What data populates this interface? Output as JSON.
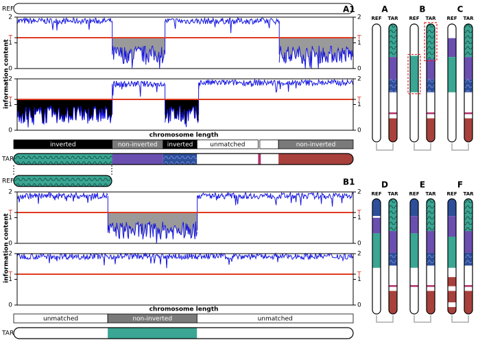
{
  "labels": {
    "ref": "REF",
    "tar": "TAR",
    "group_a": "A1",
    "group_b": "B1",
    "y_axis": "information content",
    "x_axis": "chromosome length"
  },
  "ylim": [
    0,
    2
  ],
  "yticks": [
    0,
    1,
    {
      "value": 1.2,
      "label": "T"
    },
    2
  ],
  "panels": [
    {
      "segments": [
        {
          "from": 0,
          "to": 0.283,
          "level": 1.85
        },
        {
          "from": 0.283,
          "to": 0.44,
          "level": 0.55,
          "fill": "#9a9a9a"
        },
        {
          "from": 0.44,
          "to": 0.78,
          "level": 1.85
        },
        {
          "from": 0.78,
          "to": 1,
          "level": 0.55,
          "fill": "#9a9a9a"
        }
      ]
    },
    {
      "segments": [
        {
          "from": 0,
          "to": 0.283,
          "level": 0.6,
          "fill": "#000000"
        },
        {
          "from": 0.283,
          "to": 0.44,
          "level": 1.8
        },
        {
          "from": 0.44,
          "to": 0.54,
          "level": 0.6,
          "fill": "#000000"
        },
        {
          "from": 0.54,
          "to": 1,
          "level": 1.85
        }
      ]
    },
    {
      "segments": [
        {
          "from": 0,
          "to": 0.27,
          "level": 1.85
        },
        {
          "from": 0.27,
          "to": 0.536,
          "level": 0.5,
          "fill": "#9a9a9a"
        },
        {
          "from": 0.536,
          "to": 1,
          "level": 1.85
        }
      ]
    },
    {
      "segments": [
        {
          "from": 0,
          "to": 1,
          "level": 1.9
        }
      ]
    }
  ],
  "annotation_bars": [
    [
      {
        "from": 0,
        "to": 0.29,
        "label": "inverted",
        "fill": "#000000"
      },
      {
        "from": 0.29,
        "to": 0.44,
        "label": "non-inverted",
        "fill": "#7a7a7a"
      },
      {
        "from": 0.44,
        "to": 0.54,
        "label": "inverted",
        "fill": "#000000"
      },
      {
        "from": 0.54,
        "to": 0.72,
        "label": "unmatched",
        "fill": "#ffffff"
      },
      {
        "from": 0.725,
        "to": 0.78,
        "fill": "#ffffff"
      },
      {
        "from": 0.78,
        "to": 1,
        "label": "non-inverted",
        "fill": "#7a7a7a"
      }
    ],
    [
      {
        "from": 0,
        "to": 0.277,
        "label": "unmatched",
        "fill": "#ffffff"
      },
      {
        "from": 0.277,
        "to": 0.54,
        "label": "non-inverted",
        "fill": "#7a7a7a"
      },
      {
        "from": 0.54,
        "to": 1,
        "label": "unmatched",
        "fill": "#ffffff"
      }
    ]
  ],
  "strips": [
    [
      {
        "from": 0,
        "to": 0.29,
        "color": "teal"
      },
      {
        "from": 0.29,
        "to": 0.44,
        "color": "#6a4fb0"
      },
      {
        "from": 0.44,
        "to": 0.54,
        "color": "blue"
      },
      {
        "from": 0.54,
        "to": 0.72,
        "color": "#ffffff"
      },
      {
        "from": 0.72,
        "to": 0.728,
        "color": "#b0306a"
      },
      {
        "from": 0.728,
        "to": 0.78,
        "color": "#ffffff"
      },
      {
        "from": 0.78,
        "to": 1,
        "color": "#a8403c"
      }
    ],
    [
      {
        "from": 0,
        "to": 1,
        "color": "teal"
      }
    ],
    [
      {
        "from": 0,
        "to": 0.277,
        "color": "#ffffff"
      },
      {
        "from": 0.277,
        "to": 0.54,
        "color": "#3aa693"
      },
      {
        "from": 0.54,
        "to": 1,
        "color": "#ffffff"
      }
    ]
  ],
  "chromosomes": [
    {
      "label": "A",
      "ref": [
        {
          "from": 0,
          "to": 1,
          "color": "#ffffff"
        }
      ],
      "tar": [
        {
          "from": 0,
          "to": 0.28,
          "color": "teal"
        },
        {
          "from": 0.28,
          "to": 0.47,
          "color": "#6a4fb0"
        },
        {
          "from": 0.47,
          "to": 0.58,
          "color": "blue"
        },
        {
          "from": 0.58,
          "to": 0.75,
          "color": "#ffffff"
        },
        {
          "from": 0.75,
          "to": 0.765,
          "color": "#b0306a"
        },
        {
          "from": 0.765,
          "to": 0.8,
          "color": "#ffffff"
        },
        {
          "from": 0.8,
          "to": 1,
          "color": "#a8403c"
        }
      ]
    },
    {
      "label": "B",
      "ref": [
        {
          "from": 0,
          "to": 0.27,
          "color": "#ffffff"
        },
        {
          "from": 0.27,
          "to": 0.58,
          "color": "#3aa693",
          "highlight": true
        },
        {
          "from": 0.58,
          "to": 1,
          "color": "#ffffff"
        }
      ],
      "tar": [
        {
          "from": 0,
          "to": 0.3,
          "color": "teal",
          "highlight": true
        },
        {
          "from": 0.3,
          "to": 0.47,
          "color": "#6a4fb0"
        },
        {
          "from": 0.47,
          "to": 0.58,
          "color": "blue"
        },
        {
          "from": 0.58,
          "to": 0.75,
          "color": "#ffffff"
        },
        {
          "from": 0.75,
          "to": 0.765,
          "color": "#b0306a"
        },
        {
          "from": 0.765,
          "to": 0.8,
          "color": "#ffffff"
        },
        {
          "from": 0.8,
          "to": 1,
          "color": "#a8403c"
        }
      ]
    },
    {
      "label": "C",
      "ref": [
        {
          "from": 0,
          "to": 0.12,
          "color": "#ffffff"
        },
        {
          "from": 0.12,
          "to": 0.28,
          "color": "#6a4fb0"
        },
        {
          "from": 0.28,
          "to": 0.58,
          "color": "#3aa693"
        },
        {
          "from": 0.58,
          "to": 1,
          "color": "#ffffff"
        }
      ],
      "tar": [
        {
          "from": 0,
          "to": 0.28,
          "color": "teal"
        },
        {
          "from": 0.28,
          "to": 0.47,
          "color": "#6a4fb0"
        },
        {
          "from": 0.47,
          "to": 0.58,
          "color": "blue"
        },
        {
          "from": 0.58,
          "to": 0.75,
          "color": "#ffffff"
        },
        {
          "from": 0.75,
          "to": 0.765,
          "color": "#b0306a"
        },
        {
          "from": 0.765,
          "to": 0.8,
          "color": "#ffffff"
        },
        {
          "from": 0.8,
          "to": 1,
          "color": "#a8403c"
        }
      ]
    },
    {
      "label": "D",
      "ref": [
        {
          "from": 0,
          "to": 0.15,
          "color": "#2d4f9a"
        },
        {
          "from": 0.15,
          "to": 0.165,
          "color": "#ffffff"
        },
        {
          "from": 0.165,
          "to": 0.3,
          "color": "#6a4fb0"
        },
        {
          "from": 0.3,
          "to": 0.6,
          "color": "#3aa693"
        },
        {
          "from": 0.6,
          "to": 1,
          "color": "#ffffff"
        }
      ],
      "tar": [
        {
          "from": 0,
          "to": 0.28,
          "color": "teal"
        },
        {
          "from": 0.28,
          "to": 0.47,
          "color": "#6a4fb0"
        },
        {
          "from": 0.47,
          "to": 0.58,
          "color": "blue"
        },
        {
          "from": 0.58,
          "to": 0.75,
          "color": "#ffffff"
        },
        {
          "from": 0.75,
          "to": 0.765,
          "color": "#b0306a"
        },
        {
          "from": 0.765,
          "to": 0.8,
          "color": "#ffffff"
        },
        {
          "from": 0.8,
          "to": 1,
          "color": "#a8403c"
        }
      ]
    },
    {
      "label": "E",
      "ref": [
        {
          "from": 0,
          "to": 0.15,
          "color": "#2d4f9a"
        },
        {
          "from": 0.15,
          "to": 0.3,
          "color": "#6a4fb0"
        },
        {
          "from": 0.3,
          "to": 0.6,
          "color": "#3aa693"
        },
        {
          "from": 0.6,
          "to": 0.75,
          "color": "#ffffff"
        },
        {
          "from": 0.75,
          "to": 0.765,
          "color": "#b0306a"
        },
        {
          "from": 0.765,
          "to": 1,
          "color": "#ffffff"
        }
      ],
      "tar": [
        {
          "from": 0,
          "to": 0.28,
          "color": "teal"
        },
        {
          "from": 0.28,
          "to": 0.47,
          "color": "#6a4fb0"
        },
        {
          "from": 0.47,
          "to": 0.58,
          "color": "blue"
        },
        {
          "from": 0.58,
          "to": 0.75,
          "color": "#ffffff"
        },
        {
          "from": 0.75,
          "to": 0.765,
          "color": "#b0306a"
        },
        {
          "from": 0.765,
          "to": 0.8,
          "color": "#ffffff"
        },
        {
          "from": 0.8,
          "to": 1,
          "color": "#a8403c"
        }
      ]
    },
    {
      "label": "F",
      "ref": [
        {
          "from": 0,
          "to": 0.15,
          "color": "#2d4f9a"
        },
        {
          "from": 0.15,
          "to": 0.33,
          "color": "#6a4fb0"
        },
        {
          "from": 0.33,
          "to": 0.6,
          "color": "#3aa693"
        },
        {
          "from": 0.6,
          "to": 0.68,
          "color": "#ffffff"
        },
        {
          "from": 0.68,
          "to": 0.76,
          "color": "#a8403c"
        },
        {
          "from": 0.76,
          "to": 0.8,
          "color": "#ffffff"
        },
        {
          "from": 0.8,
          "to": 0.9,
          "color": "#a8403c"
        },
        {
          "from": 0.9,
          "to": 0.94,
          "color": "#ffffff"
        },
        {
          "from": 0.94,
          "to": 1,
          "color": "#a8403c"
        }
      ],
      "tar": [
        {
          "from": 0,
          "to": 0.28,
          "color": "teal"
        },
        {
          "from": 0.28,
          "to": 0.47,
          "color": "#6a4fb0"
        },
        {
          "from": 0.47,
          "to": 0.58,
          "color": "blue"
        },
        {
          "from": 0.58,
          "to": 0.75,
          "color": "#ffffff"
        },
        {
          "from": 0.75,
          "to": 0.765,
          "color": "#b0306a"
        },
        {
          "from": 0.765,
          "to": 0.8,
          "color": "#ffffff"
        },
        {
          "from": 0.8,
          "to": 1,
          "color": "#a8403c"
        }
      ]
    }
  ]
}
